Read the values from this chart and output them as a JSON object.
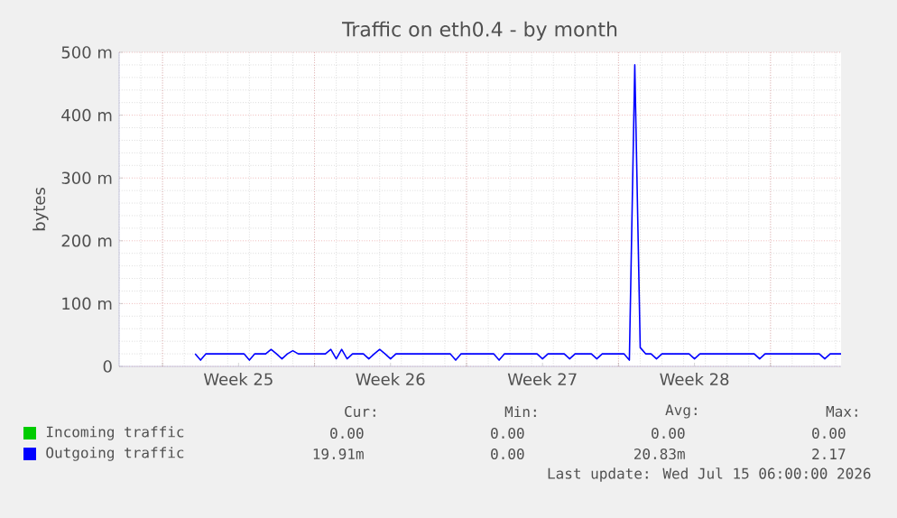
{
  "chart_data": {
    "type": "line",
    "title": "Traffic on eth0.4 - by month",
    "ylabel": "bytes",
    "categories": [
      null,
      null,
      null,
      null,
      null,
      null,
      null,
      null,
      null,
      null,
      null,
      null,
      null,
      null,
      null,
      null,
      null,
      null,
      null,
      null,
      null,
      null,
      "Week 25",
      null,
      null,
      null,
      null,
      null,
      null,
      null,
      null,
      null,
      null,
      null,
      null,
      null,
      null,
      null,
      null,
      null,
      null,
      null,
      null,
      null,
      null,
      null,
      null,
      null,
      null,
      null,
      "Week 26",
      null,
      null,
      null,
      null,
      null,
      null,
      null,
      null,
      null,
      null,
      null,
      null,
      null,
      null,
      null,
      null,
      null,
      null,
      null,
      null,
      null,
      null,
      null,
      null,
      null,
      null,
      null,
      "Week 27",
      null,
      null,
      null,
      null,
      null,
      null,
      null,
      null,
      null,
      null,
      null,
      null,
      null,
      null,
      null,
      null,
      null,
      null,
      null,
      null,
      null,
      null,
      null,
      null,
      null,
      null,
      null,
      "Week 28",
      null,
      null,
      null,
      null,
      null,
      null,
      null,
      null,
      null,
      null,
      null,
      null,
      null,
      null,
      null,
      null,
      null,
      null,
      null,
      null,
      null,
      null,
      null,
      null,
      null,
      null,
      null
    ],
    "ylim": [
      0,
      500
    ],
    "yticks": [
      0,
      {
        "value": 100,
        "label": "100 m"
      },
      {
        "value": 200,
        "label": "200 m"
      },
      {
        "value": 300,
        "label": "300 m"
      },
      {
        "value": 400,
        "label": "400 m"
      },
      {
        "value": 500,
        "label": "500 m"
      }
    ],
    "grid": true,
    "legend": "bottom",
    "marker": "none",
    "line_style": "solid",
    "series": [
      {
        "name": "Incoming traffic",
        "color": "#00cc00",
        "values": [
          null,
          null,
          null,
          null,
          null,
          null,
          null,
          null,
          null,
          null,
          null,
          null,
          null,
          null,
          null,
          null,
          null,
          null,
          null,
          null,
          null,
          null,
          null,
          null,
          null,
          null,
          null,
          null,
          null,
          null,
          null,
          null,
          null,
          null,
          null,
          null,
          null,
          null,
          null,
          null,
          null,
          null,
          null,
          null,
          null,
          null,
          null,
          null,
          null,
          null,
          null,
          null,
          null,
          null,
          null,
          null,
          null,
          null,
          null,
          null,
          null,
          null,
          null,
          null,
          null,
          null,
          null,
          null,
          null,
          null,
          null,
          null,
          null,
          null,
          null,
          null,
          null,
          null,
          null,
          null,
          null,
          null,
          null,
          null,
          null,
          null,
          null,
          null,
          null,
          null,
          null,
          null,
          null,
          null,
          null,
          null,
          null,
          null,
          null,
          null,
          null,
          null,
          null,
          null,
          null,
          null,
          null,
          null,
          null,
          null,
          null,
          null,
          null,
          null,
          null,
          null,
          null,
          null,
          null,
          null,
          null,
          null,
          null,
          null,
          null,
          null,
          null,
          null,
          null,
          null,
          null,
          null,
          null,
          null
        ]
      },
      {
        "name": "Outgoing traffic",
        "color": "#0000ff",
        "values": [
          null,
          null,
          null,
          null,
          null,
          null,
          null,
          null,
          null,
          null,
          null,
          null,
          null,
          null,
          20,
          10,
          20,
          20,
          20,
          20,
          20,
          20,
          20,
          20,
          10,
          20,
          20,
          20,
          27,
          20,
          12,
          20,
          25,
          20,
          20,
          20,
          20,
          20,
          20,
          27,
          12,
          27,
          12,
          20,
          20,
          20,
          12,
          20,
          27,
          20,
          12,
          20,
          20,
          20,
          20,
          20,
          20,
          20,
          20,
          20,
          20,
          20,
          10,
          20,
          20,
          20,
          20,
          20,
          20,
          20,
          10,
          20,
          20,
          20,
          20,
          20,
          20,
          20,
          12,
          20,
          20,
          20,
          20,
          12,
          20,
          20,
          20,
          20,
          12,
          20,
          20,
          20,
          20,
          20,
          10,
          480,
          30,
          20,
          20,
          12,
          20,
          20,
          20,
          20,
          20,
          20,
          12,
          20,
          20,
          20,
          20,
          20,
          20,
          20,
          20,
          20,
          20,
          20,
          12,
          20,
          20,
          20,
          20,
          20,
          20,
          20,
          20,
          20,
          20,
          20,
          12,
          20,
          20,
          20
        ]
      }
    ],
    "annotations": [
      "Cur:",
      "Min:",
      "Avg:",
      "Max:",
      "0.00",
      "0.00",
      "0.00",
      "0.00",
      "19.91m",
      "0.00",
      "20.83m",
      "2.17",
      "Last update: Wed Jul 15 06:00:00 2026"
    ]
  }
}
